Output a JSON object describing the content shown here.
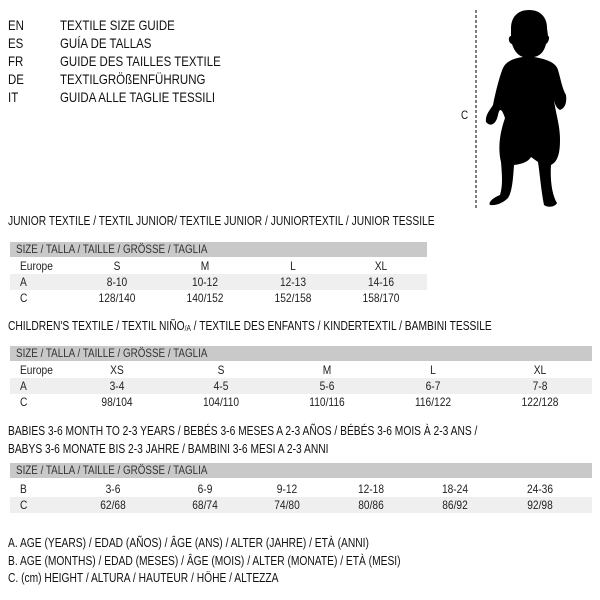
{
  "languages": [
    {
      "code": "EN",
      "title": "TEXTILE SIZE GUIDE"
    },
    {
      "code": "ES",
      "title": "GUÍA DE TALLAS"
    },
    {
      "code": "FR",
      "title": "GUIDE DES TAILLES TEXTILE"
    },
    {
      "code": "DE",
      "title": "TEXTILGRÖßENFÜHRUNG"
    },
    {
      "code": "IT",
      "title": "GUIDA ALLE TAGLIE TESSILI"
    }
  ],
  "figure": {
    "label": "C",
    "icon": "child-silhouette-icon"
  },
  "size_header": "SIZE / TALLA / TAILLE / GRÖSSE / TAGLIA",
  "junior": {
    "title": "JUNIOR TEXTILE / TEXTIL JUNIOR/ TEXTILE JUNIOR / JUNIORTEXTIL / JUNIOR TESSILE",
    "rows": [
      {
        "label": "Europe",
        "values": [
          "S",
          "M",
          "L",
          "XL"
        ]
      },
      {
        "label": "A",
        "values": [
          "8-10",
          "10-12",
          "12-13",
          "14-16"
        ]
      },
      {
        "label": "C",
        "values": [
          "128/140",
          "140/152",
          "152/158",
          "158/170"
        ]
      }
    ]
  },
  "children": {
    "title_a": "CHILDREN'S TEXTILE / TEXTIL NIÑO",
    "title_sub": "/A",
    "title_b": " / TEXTILE DES ENFANTS / KINDERTEXTIL / BAMBINI TESSILE",
    "rows": [
      {
        "label": "Europe",
        "values": [
          "XS",
          "S",
          "M",
          "L",
          "XL"
        ]
      },
      {
        "label": "A",
        "values": [
          "3-4",
          "4-5",
          "5-6",
          "6-7",
          "7-8"
        ]
      },
      {
        "label": "C",
        "values": [
          "98/104",
          "104/110",
          "110/116",
          "116/122",
          "122/128"
        ]
      }
    ]
  },
  "babies": {
    "title_1": "BABIES 3-6 MONTH TO 2-3 YEARS / BEBÉS 3-6 MESES A 2-3 AÑOS / BÉBÉS 3-6 MOIS À 2-3 ANS /",
    "title_2": "BABYS 3-6 MONATE BIS 2-3 JAHRE / BAMBINI 3-6 MESI A 2-3 ANNI",
    "rows": [
      {
        "label": "B",
        "values": [
          "3-6",
          "6-9",
          "9-12",
          "12-18",
          "18-24",
          "24-36"
        ]
      },
      {
        "label": "C",
        "values": [
          "62/68",
          "68/74",
          "74/80",
          "80/86",
          "86/92",
          "92/98"
        ]
      }
    ]
  },
  "legend": [
    "A. AGE (YEARS) / EDAD (AÑOS) / ÂGE (ANS) / ALTER (JAHRE) / ETÀ (ANNI)",
    "B. AGE (MONTHS) / EDAD (MESES) / ÂGE (MOIS) / ALTER (MONATE) / ETÀ (MESI)",
    "C. (cm) HEIGHT / ALTURA / HAUTEUR / HÖHE / ALTEZZA"
  ],
  "colors": {
    "header_bg": "#c9c9c9",
    "row_shade": "#efefef"
  }
}
